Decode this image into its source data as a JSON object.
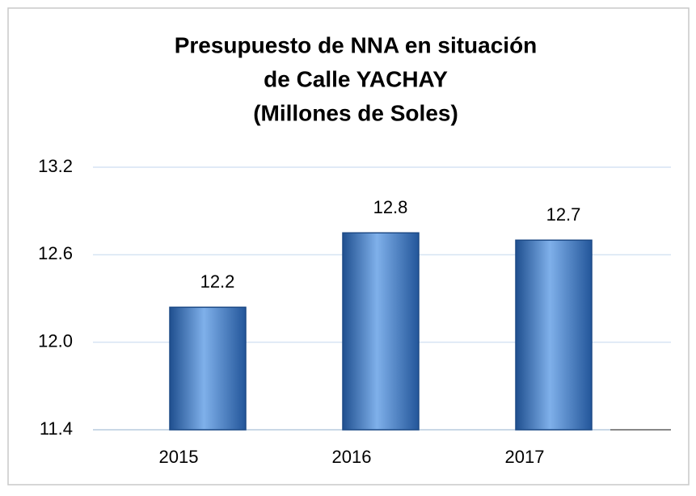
{
  "chart_data": {
    "type": "bar",
    "title": [
      "Presupuesto de NNA en situación",
      "de Calle YACHAY",
      "(Millones de Soles)"
    ],
    "categories": [
      "2015",
      "2016",
      "2017"
    ],
    "values": [
      12.24,
      12.75,
      12.7
    ],
    "value_labels": [
      "12.2",
      "12.8",
      "12.7"
    ],
    "color": "#4a7fc4",
    "ylim": [
      11.4,
      13.2
    ],
    "yticks": [
      11.4,
      {
        "value": 12,
        "label": "12.0"
      },
      12.6,
      13.2
    ],
    "grid": true
  }
}
